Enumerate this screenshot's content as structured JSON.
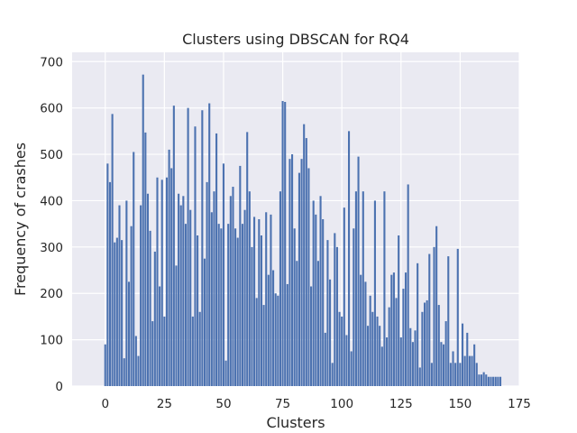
{
  "chart_data": {
    "type": "bar",
    "title": "Clusters using DBSCAN for RQ4",
    "xlabel": "Clusters",
    "ylabel": "Frequency of crashes",
    "xlim": [
      -14,
      175
    ],
    "ylim": [
      0,
      720
    ],
    "xticks": [
      0,
      25,
      50,
      75,
      100,
      125,
      150,
      175
    ],
    "yticks": [
      0,
      100,
      200,
      300,
      400,
      500,
      600,
      700
    ],
    "grid": true,
    "bar_color": "#4c72b0",
    "background": "#eaeaf2",
    "x": [
      0,
      1,
      2,
      3,
      4,
      5,
      6,
      7,
      8,
      9,
      10,
      11,
      12,
      13,
      14,
      15,
      16,
      17,
      18,
      19,
      20,
      21,
      22,
      23,
      24,
      25,
      26,
      27,
      28,
      29,
      30,
      31,
      32,
      33,
      34,
      35,
      36,
      37,
      38,
      39,
      40,
      41,
      42,
      43,
      44,
      45,
      46,
      47,
      48,
      49,
      50,
      51,
      52,
      53,
      54,
      55,
      56,
      57,
      58,
      59,
      60,
      61,
      62,
      63,
      64,
      65,
      66,
      67,
      68,
      69,
      70,
      71,
      72,
      73,
      74,
      75,
      76,
      77,
      78,
      79,
      80,
      81,
      82,
      83,
      84,
      85,
      86,
      87,
      88,
      89,
      90,
      91,
      92,
      93,
      94,
      95,
      96,
      97,
      98,
      99,
      100,
      101,
      102,
      103,
      104,
      105,
      106,
      107,
      108,
      109,
      110,
      111,
      112,
      113,
      114,
      115,
      116,
      117,
      118,
      119,
      120,
      121,
      122,
      123,
      124,
      125,
      126,
      127,
      128,
      129,
      130,
      131,
      132,
      133,
      134,
      135,
      136,
      137,
      138,
      139,
      140,
      141,
      142,
      143,
      144,
      145,
      146,
      147,
      148,
      149,
      150,
      151,
      152,
      153,
      154,
      155,
      156,
      157,
      158,
      159,
      160,
      161,
      162,
      163,
      164,
      165,
      166,
      167
    ],
    "values": [
      90,
      480,
      440,
      587,
      310,
      320,
      390,
      315,
      60,
      400,
      225,
      345,
      505,
      108,
      65,
      390,
      672,
      547,
      415,
      335,
      140,
      290,
      450,
      215,
      445,
      150,
      450,
      510,
      470,
      605,
      260,
      415,
      390,
      410,
      350,
      600,
      380,
      150,
      560,
      325,
      160,
      595,
      275,
      440,
      610,
      375,
      420,
      545,
      350,
      340,
      480,
      55,
      350,
      410,
      430,
      340,
      320,
      475,
      350,
      380,
      548,
      420,
      300,
      365,
      190,
      360,
      325,
      175,
      375,
      240,
      370,
      250,
      200,
      195,
      420,
      615,
      613,
      220,
      490,
      500,
      340,
      270,
      460,
      490,
      565,
      535,
      470,
      215,
      400,
      370,
      270,
      410,
      360,
      115,
      315,
      230,
      50,
      330,
      300,
      160,
      150,
      385,
      110,
      550,
      75,
      340,
      420,
      495,
      240,
      420,
      225,
      130,
      195,
      160,
      400,
      150,
      130,
      85,
      420,
      105,
      170,
      240,
      245,
      190,
      325,
      105,
      210,
      245,
      435,
      125,
      95,
      120,
      265,
      40,
      160,
      180,
      185,
      285,
      50,
      300,
      345,
      175,
      95,
      90,
      140,
      280,
      50,
      75,
      50,
      296,
      50,
      135,
      65,
      115,
      65,
      65,
      90,
      50,
      25,
      25,
      30,
      25,
      20,
      20,
      20,
      20,
      20,
      20
    ]
  }
}
